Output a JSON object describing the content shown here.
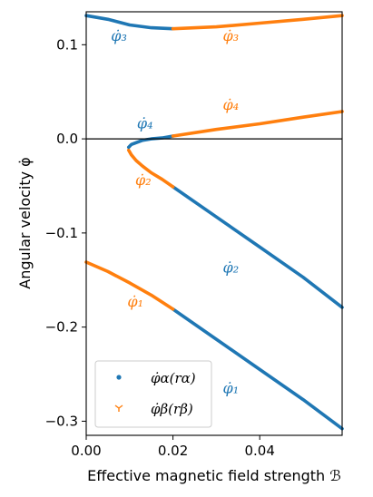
{
  "chart_data": {
    "type": "scatter",
    "xlabel": "Effective magnetic field strength ℬ",
    "ylabel": "Angular velocity φ̇",
    "xlim": [
      0.0,
      0.059
    ],
    "ylim": [
      -0.315,
      0.135
    ],
    "xticks": [
      0.0,
      0.02,
      0.04
    ],
    "xtick_labels": [
      "0.00",
      "0.02",
      "0.04"
    ],
    "yticks": [
      0.1,
      0.0,
      -0.1,
      -0.2,
      -0.3
    ],
    "ytick_labels": [
      "0.1",
      "0.0",
      "−0.1",
      "−0.2",
      "−0.3"
    ],
    "hline_y": 0.0,
    "colors": {
      "alpha": "#1f77b4",
      "beta": "#ff7f0e"
    },
    "legend": {
      "placement": "lower-left",
      "entries": [
        {
          "key": "alpha",
          "label": "φ̇α(rα)",
          "marker": "dot"
        },
        {
          "key": "beta",
          "label": "φ̇β(rβ)",
          "marker": "tri_down"
        }
      ]
    },
    "series": [
      {
        "key": "alpha",
        "segment": "phi1",
        "x": [
          0.02,
          0.03,
          0.04,
          0.05,
          0.059
        ],
        "y": [
          -0.181,
          -0.213,
          -0.245,
          -0.277,
          -0.308
        ]
      },
      {
        "key": "beta",
        "segment": "phi1",
        "x": [
          0.0,
          0.005,
          0.01,
          0.015,
          0.02
        ],
        "y": [
          -0.131,
          -0.141,
          -0.153,
          -0.166,
          -0.181
        ]
      },
      {
        "key": "alpha",
        "segment": "phi2",
        "x": [
          0.02,
          0.03,
          0.04,
          0.05,
          0.059
        ],
        "y": [
          -0.051,
          -0.083,
          -0.115,
          -0.147,
          -0.179
        ]
      },
      {
        "key": "beta",
        "segment": "phi2",
        "x": [
          0.0098,
          0.0104,
          0.0115,
          0.013,
          0.015,
          0.0175,
          0.02
        ],
        "y": [
          -0.012,
          -0.017,
          -0.023,
          -0.029,
          -0.036,
          -0.043,
          -0.051
        ]
      },
      {
        "key": "alpha",
        "segment": "phi4",
        "x": [
          0.0098,
          0.0104,
          0.0115,
          0.013,
          0.015,
          0.0175,
          0.02
        ],
        "y": [
          -0.009,
          -0.006,
          -0.004,
          -0.0015,
          0.0,
          0.001,
          0.003
        ]
      },
      {
        "key": "beta",
        "segment": "phi4",
        "x": [
          0.02,
          0.03,
          0.04,
          0.05,
          0.059
        ],
        "y": [
          0.003,
          0.01,
          0.016,
          0.023,
          0.029
        ]
      },
      {
        "key": "alpha",
        "segment": "phi3",
        "x": [
          0.0,
          0.005,
          0.01,
          0.015,
          0.02
        ],
        "y": [
          0.131,
          0.127,
          0.121,
          0.118,
          0.117
        ]
      },
      {
        "key": "beta",
        "segment": "phi3",
        "x": [
          0.02,
          0.03,
          0.04,
          0.05,
          0.059
        ],
        "y": [
          0.117,
          0.119,
          0.123,
          0.127,
          0.131
        ]
      }
    ],
    "annotations": [
      {
        "text": "φ̇₃",
        "sub": "3",
        "color": "alpha",
        "x": 0.0057,
        "y": 0.104
      },
      {
        "text": "φ̇₃",
        "sub": "3",
        "color": "beta",
        "x": 0.0315,
        "y": 0.104
      },
      {
        "text": "φ̇₄",
        "sub": "4",
        "color": "alpha",
        "x": 0.0117,
        "y": 0.011
      },
      {
        "text": "φ̇₄",
        "sub": "4",
        "color": "beta",
        "x": 0.0315,
        "y": 0.031
      },
      {
        "text": "φ̇₂",
        "sub": "2",
        "color": "beta",
        "x": 0.0113,
        "y": -0.049
      },
      {
        "text": "φ̇₂",
        "sub": "2",
        "color": "alpha",
        "x": 0.0315,
        "y": -0.142
      },
      {
        "text": "φ̇₁",
        "sub": "1",
        "color": "beta",
        "x": 0.0095,
        "y": -0.178
      },
      {
        "text": "φ̇₁",
        "sub": "1",
        "color": "alpha",
        "x": 0.0315,
        "y": -0.27
      }
    ]
  }
}
